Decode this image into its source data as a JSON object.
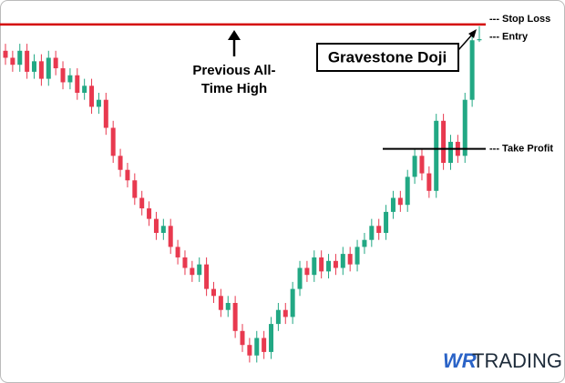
{
  "chart_data": {
    "type": "candlestick",
    "open": [
      92,
      90,
      88,
      92,
      86,
      89,
      84,
      90,
      87,
      83,
      85,
      80,
      82,
      76,
      78,
      70,
      62,
      58,
      55,
      50,
      47,
      44,
      40,
      42,
      36,
      33,
      30,
      28,
      31,
      24,
      22,
      18,
      20,
      12,
      8,
      5,
      10,
      6,
      14,
      18,
      16,
      24,
      30,
      28,
      33,
      29,
      32,
      30,
      34,
      31,
      36,
      38,
      42,
      40,
      46,
      50,
      48,
      56,
      62,
      57,
      52,
      72,
      60,
      66,
      62,
      78,
      95
    ],
    "high": [
      94,
      92,
      94,
      94,
      91,
      91,
      92,
      92,
      89,
      87,
      87,
      84,
      84,
      80,
      80,
      72,
      64,
      60,
      57,
      52,
      49,
      46,
      44,
      44,
      38,
      35,
      32,
      33,
      33,
      26,
      24,
      22,
      22,
      14,
      10,
      12,
      12,
      16,
      20,
      20,
      26,
      32,
      32,
      35,
      35,
      34,
      34,
      36,
      36,
      38,
      40,
      44,
      44,
      48,
      52,
      52,
      58,
      64,
      64,
      59,
      74,
      74,
      68,
      68,
      80,
      97,
      99
    ],
    "low": [
      88,
      86,
      86,
      84,
      84,
      82,
      82,
      85,
      81,
      81,
      78,
      78,
      74,
      74,
      68,
      60,
      56,
      53,
      48,
      45,
      42,
      38,
      38,
      34,
      31,
      28,
      26,
      26,
      22,
      20,
      16,
      16,
      10,
      6,
      3,
      3,
      4,
      4,
      12,
      14,
      14,
      22,
      26,
      26,
      27,
      27,
      28,
      28,
      29,
      29,
      34,
      36,
      38,
      38,
      44,
      46,
      46,
      54,
      55,
      50,
      50,
      58,
      58,
      60,
      60,
      76,
      94.5
    ],
    "close": [
      90,
      88,
      92,
      86,
      89,
      84,
      90,
      87,
      83,
      85,
      80,
      82,
      76,
      78,
      70,
      62,
      58,
      55,
      50,
      47,
      44,
      40,
      42,
      36,
      33,
      30,
      28,
      31,
      24,
      22,
      18,
      20,
      12,
      8,
      5,
      10,
      6,
      14,
      18,
      16,
      24,
      30,
      28,
      33,
      29,
      32,
      30,
      34,
      31,
      36,
      38,
      42,
      40,
      46,
      50,
      48,
      56,
      62,
      57,
      52,
      72,
      60,
      66,
      62,
      78,
      95,
      95.3
    ],
    "up_color": "#22a884",
    "down_color": "#e8394f",
    "ylim": [
      0,
      100
    ],
    "reference_lines": [
      {
        "label": "--- Stop Loss",
        "value": 99.5,
        "color": "#d40000"
      },
      {
        "label": "--- Entry",
        "value": 96
      },
      {
        "label": "--- Take Profit",
        "value": 64,
        "color": "#000000"
      }
    ],
    "annotation": [
      "Previous All-",
      "Time High"
    ],
    "callout": "Gravestone Doji",
    "watermark": {
      "brand": "WR",
      "name": "TRADING"
    }
  }
}
